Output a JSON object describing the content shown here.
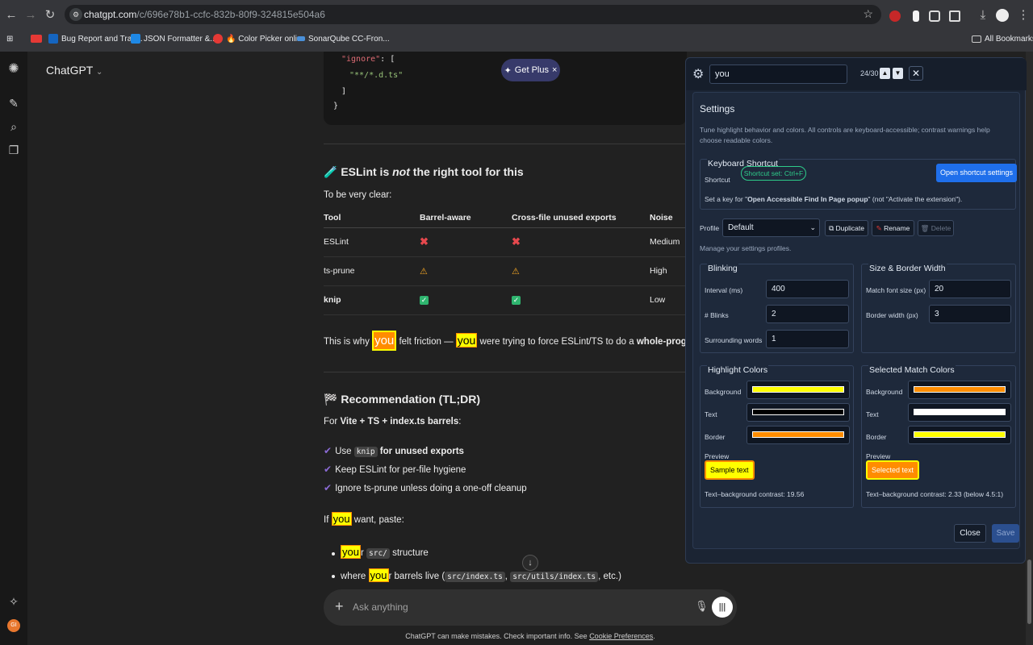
{
  "browser": {
    "url_host": "chatgpt.com",
    "url_path": "/c/696e78b1-ccfc-832b-80f9-324815e504a6",
    "bookmarks": [
      {
        "label": "Bug Report and Trac...",
        "color": "#1565c0"
      },
      {
        "label": "JSON Formatter &...",
        "color": "#1e88e5"
      },
      {
        "label": "🔥 Color Picker onli...",
        "color": "#e53935"
      },
      {
        "label": "SonarQube CC-Fron...",
        "color": "#4a90d9"
      }
    ],
    "all_bookmarks": "All Bookmarks"
  },
  "app": {
    "brand": "ChatGPT",
    "get_plus": "Get Plus",
    "get_plus_close": "×"
  },
  "code": {
    "line1_key": "\"ignore\"",
    "line1_rest": ": [",
    "line2": "\"**/*.d.ts\"",
    "line3": "]",
    "line4": "}"
  },
  "section1": {
    "emoji": "🧪",
    "title_pre": "ESLint is ",
    "title_em": "not",
    "title_post": " the right tool for this",
    "intro": "To be very clear:",
    "headers": [
      "Tool",
      "Barrel-aware",
      "Cross-file unused exports",
      "Noise"
    ],
    "rows": [
      {
        "tool": "ESLint",
        "barrel": "✖",
        "cross": "✖",
        "noise": "Medium",
        "kind": "x"
      },
      {
        "tool": "ts-prune",
        "barrel": "⚠",
        "cross": "⚠",
        "noise": "High",
        "kind": "w"
      },
      {
        "tool": "knip",
        "barrel": "✓",
        "cross": "✓",
        "noise": "Low",
        "kind": "ok"
      }
    ],
    "sentence_pre": "This is why ",
    "sentence_hl1": "you",
    "sentence_mid": " felt friction — ",
    "sentence_hl2": "you",
    "sentence_post": " were trying to force ESLint/TS to do a ",
    "sentence_bold": "whole-program ana"
  },
  "section2": {
    "emoji": "🏁",
    "title": "Recommendation (TL;DR)",
    "intro_pre": "For ",
    "intro_bold": "Vite + TS + index.ts barrels",
    "intro_post": ":",
    "items": [
      {
        "pre": "Use ",
        "code": "knip",
        "bold": " for unused exports"
      },
      {
        "text": "Keep ESLint for per-file hygiene"
      },
      {
        "text": "Ignore ts-prune unless doing a one-off cleanup"
      }
    ],
    "paste_pre": "If ",
    "paste_hl": "you",
    "paste_post": " want, paste:",
    "bullet1_hl": "you",
    "bullet1_r": "r ",
    "bullet1_code": "src/",
    "bullet1_post": " structure",
    "bullet2_pre": "where ",
    "bullet2_hl": "you",
    "bullet2_r": "r barrels live (",
    "bullet2_code1": "src/index.ts",
    "bullet2_sep": ", ",
    "bullet2_code2": "src/utils/index.ts",
    "bullet2_post": ", etc.)"
  },
  "composer": {
    "placeholder": "Ask anything"
  },
  "footer": {
    "pre": "ChatGPT can make mistakes. Check important info. See ",
    "link": "Cookie Preferences",
    "post": "."
  },
  "user_avatar": "GI",
  "find": {
    "query": "you",
    "count": "24/30",
    "prev": "▲",
    "next": "▼",
    "close": "✕"
  },
  "settings": {
    "title": "Settings",
    "description": "Tune highlight behavior and colors. All controls are keyboard-accessible; contrast warnings help choose readable colors.",
    "keyboard": {
      "legend": "Keyboard Shortcut",
      "label": "Shortcut",
      "pill": "Shortcut set: Ctrl+F",
      "open_button": "Open shortcut settings",
      "hint_pre": "Set a key for \"",
      "hint_bold": "Open Accessible Find In Page popup",
      "hint_post": "\" (not \"Activate the extension\")."
    },
    "profile": {
      "label": "Profile",
      "value": "Default",
      "duplicate": "Duplicate",
      "rename": "Rename",
      "delete": "Delete",
      "hint": "Manage your settings profiles."
    },
    "blinking": {
      "legend": "Blinking",
      "interval_label": "Interval (ms)",
      "interval_value": "400",
      "blinks_label": "# Blinks",
      "blinks_value": "2",
      "words_label": "Surrounding words",
      "words_value": "1"
    },
    "size": {
      "legend": "Size & Border Width",
      "font_label": "Match font size (px)",
      "font_value": "20",
      "border_label": "Border width (px)",
      "border_value": "3"
    },
    "highlight": {
      "legend": "Highlight Colors",
      "bg_label": "Background",
      "text_label": "Text",
      "border_label": "Border",
      "preview_label": "Preview",
      "sample": "Sample text",
      "contrast": "Text–background contrast: 19.56",
      "colors": {
        "background": "#ffff00",
        "text": "#000000",
        "border": "#ff8c00"
      }
    },
    "selected": {
      "legend": "Selected Match Colors",
      "bg_label": "Background",
      "text_label": "Text",
      "border_label": "Border",
      "preview_label": "Preview",
      "sample": "Selected text",
      "contrast": "Text–background contrast: 2.33 (below 4.5:1)",
      "colors": {
        "background": "#ff8c00",
        "text": "#ffffff",
        "border": "#ffff00"
      }
    },
    "close": "Close",
    "save": "Save"
  }
}
